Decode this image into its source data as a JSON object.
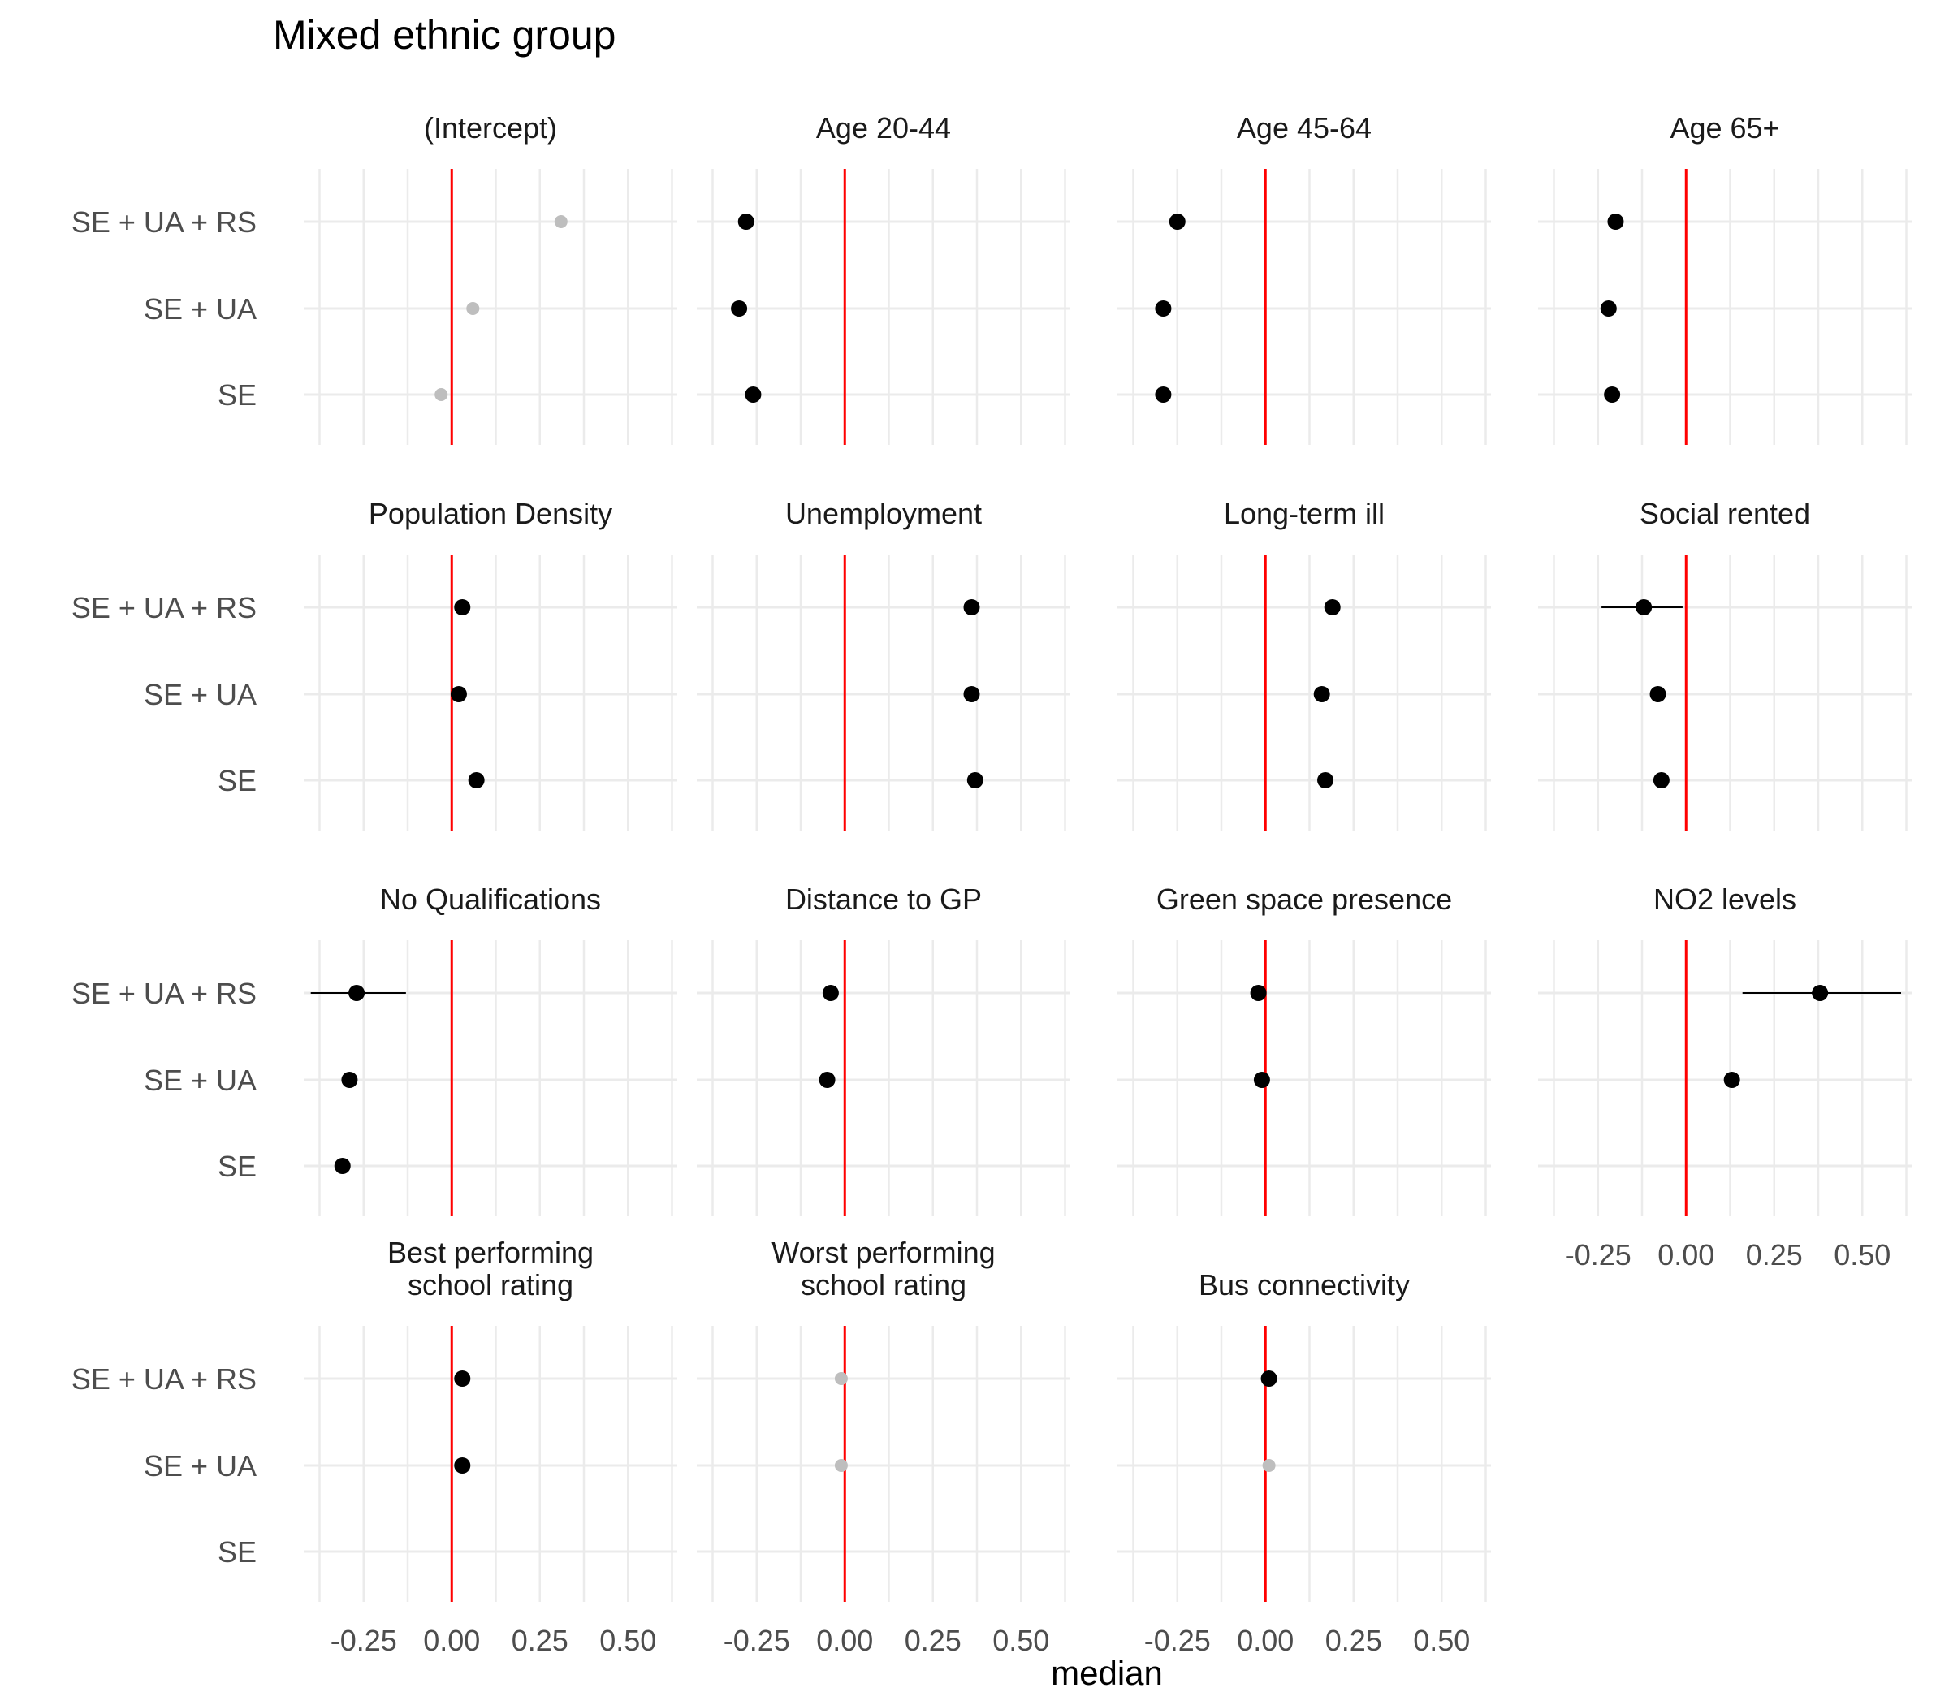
{
  "chart_data": {
    "type": "scatter",
    "title": "Mixed ethnic group",
    "xlabel": "median",
    "ylabel": "",
    "xlim": [
      -0.42,
      0.64
    ],
    "x_ticks": [
      -0.25,
      0.0,
      0.25,
      0.5
    ],
    "x_tick_labels": [
      "-0.25",
      "0.00",
      "0.25",
      "0.50"
    ],
    "y_categories": [
      "SE + UA + RS",
      "SE + UA",
      "SE"
    ],
    "reference_line_x": 0,
    "grid": true,
    "colors": {
      "point": "#000000",
      "nonsignificant_point": "#bebebe",
      "reference_line": "#ff0000",
      "grid": "#ebebeb",
      "text": "#000000",
      "tick_text": "#4d4d4d"
    },
    "panels": [
      {
        "label": "(Intercept)",
        "points": [
          {
            "model": "SE + UA + RS",
            "x": 0.31,
            "significant": false
          },
          {
            "model": "SE + UA",
            "x": 0.06,
            "significant": false
          },
          {
            "model": "SE",
            "x": -0.03,
            "significant": false
          }
        ]
      },
      {
        "label": "Age 20-44",
        "points": [
          {
            "model": "SE + UA + RS",
            "x": -0.28,
            "significant": true
          },
          {
            "model": "SE + UA",
            "x": -0.3,
            "significant": true
          },
          {
            "model": "SE",
            "x": -0.26,
            "significant": true
          }
        ]
      },
      {
        "label": "Age 45-64",
        "points": [
          {
            "model": "SE + UA + RS",
            "x": -0.25,
            "significant": true
          },
          {
            "model": "SE + UA",
            "x": -0.29,
            "significant": true
          },
          {
            "model": "SE",
            "x": -0.29,
            "significant": true
          }
        ]
      },
      {
        "label": "Age 65+",
        "points": [
          {
            "model": "SE + UA + RS",
            "x": -0.2,
            "significant": true
          },
          {
            "model": "SE + UA",
            "x": -0.22,
            "significant": true
          },
          {
            "model": "SE",
            "x": -0.21,
            "significant": true
          }
        ]
      },
      {
        "label": "Population Density",
        "points": [
          {
            "model": "SE + UA + RS",
            "x": 0.03,
            "significant": true
          },
          {
            "model": "SE + UA",
            "x": 0.02,
            "significant": true
          },
          {
            "model": "SE",
            "x": 0.07,
            "significant": true
          }
        ]
      },
      {
        "label": "Unemployment",
        "points": [
          {
            "model": "SE + UA + RS",
            "x": 0.36,
            "significant": true
          },
          {
            "model": "SE + UA",
            "x": 0.36,
            "significant": true
          },
          {
            "model": "SE",
            "x": 0.37,
            "significant": true
          }
        ]
      },
      {
        "label": "Long-term ill",
        "points": [
          {
            "model": "SE + UA + RS",
            "x": 0.19,
            "significant": true
          },
          {
            "model": "SE + UA",
            "x": 0.16,
            "significant": true
          },
          {
            "model": "SE",
            "x": 0.17,
            "significant": true
          }
        ]
      },
      {
        "label": "Social rented",
        "points": [
          {
            "model": "SE + UA + RS",
            "x": -0.12,
            "low": -0.24,
            "high": -0.01,
            "significant": true
          },
          {
            "model": "SE + UA",
            "x": -0.08,
            "significant": true
          },
          {
            "model": "SE",
            "x": -0.07,
            "significant": true
          }
        ]
      },
      {
        "label": "No Qualifications",
        "points": [
          {
            "model": "SE + UA + RS",
            "x": -0.27,
            "low": -0.4,
            "high": -0.13,
            "significant": true
          },
          {
            "model": "SE + UA",
            "x": -0.29,
            "significant": true
          },
          {
            "model": "SE",
            "x": -0.31,
            "significant": true
          }
        ]
      },
      {
        "label": "Distance to GP",
        "points": [
          {
            "model": "SE + UA + RS",
            "x": -0.04,
            "significant": true
          },
          {
            "model": "SE + UA",
            "x": -0.05,
            "significant": true
          }
        ]
      },
      {
        "label": "Green space presence",
        "points": [
          {
            "model": "SE + UA + RS",
            "x": -0.02,
            "significant": true
          },
          {
            "model": "SE + UA",
            "x": -0.01,
            "significant": true
          }
        ]
      },
      {
        "label": "NO2 levels",
        "points": [
          {
            "model": "SE + UA + RS",
            "x": 0.38,
            "low": 0.16,
            "high": 0.61,
            "significant": true
          },
          {
            "model": "SE + UA",
            "x": 0.13,
            "significant": true
          }
        ]
      },
      {
        "label": "Best performing\nschool rating",
        "points": [
          {
            "model": "SE + UA + RS",
            "x": 0.03,
            "significant": true
          },
          {
            "model": "SE + UA",
            "x": 0.03,
            "significant": true
          }
        ]
      },
      {
        "label": "Worst performing\nschool rating",
        "points": [
          {
            "model": "SE + UA + RS",
            "x": -0.01,
            "significant": false
          },
          {
            "model": "SE + UA",
            "x": -0.01,
            "significant": false
          }
        ]
      },
      {
        "label": "Bus connectivity",
        "points": [
          {
            "model": "SE + UA + RS",
            "x": 0.01,
            "significant": true
          },
          {
            "model": "SE + UA",
            "x": 0.01,
            "significant": false
          }
        ]
      }
    ]
  }
}
